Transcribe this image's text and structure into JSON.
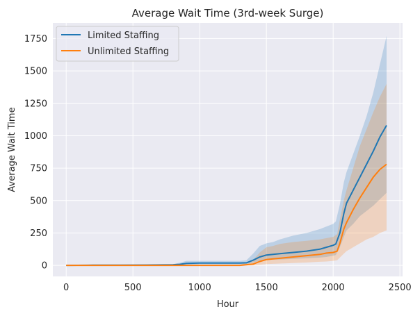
{
  "chart_data": {
    "type": "line",
    "title": "Average Wait Time (3rd-week Surge)",
    "xlabel": "Hour",
    "ylabel": "Average Wait Time",
    "xlim": [
      -100,
      2520
    ],
    "ylim": [
      -85,
      1870
    ],
    "xticks": [
      0,
      500,
      1000,
      1500,
      2000,
      2500
    ],
    "yticks": [
      0,
      250,
      500,
      750,
      1000,
      1250,
      1500,
      1750
    ],
    "grid": true,
    "legend": "top-left",
    "series": [
      {
        "name": "Limited Staffing",
        "color": "#1f77b4",
        "x": [
          0,
          200,
          400,
          600,
          800,
          850,
          900,
          1000,
          1100,
          1200,
          1300,
          1350,
          1400,
          1450,
          1500,
          1550,
          1600,
          1700,
          1800,
          1900,
          1950,
          2000,
          2020,
          2050,
          2080,
          2100,
          2150,
          2200,
          2250,
          2300,
          2350,
          2400
        ],
        "values": [
          0,
          2,
          2,
          3,
          5,
          8,
          15,
          18,
          18,
          18,
          18,
          20,
          40,
          65,
          80,
          85,
          90,
          100,
          110,
          125,
          140,
          155,
          165,
          250,
          400,
          480,
          580,
          680,
          780,
          880,
          990,
          1080
        ],
        "lower": [
          0,
          0,
          0,
          0,
          0,
          2,
          5,
          8,
          8,
          8,
          8,
          10,
          20,
          35,
          45,
          45,
          45,
          50,
          55,
          60,
          65,
          75,
          80,
          140,
          220,
          270,
          320,
          380,
          420,
          460,
          510,
          560
        ],
        "upper": [
          0,
          5,
          5,
          6,
          10,
          20,
          35,
          35,
          35,
          35,
          35,
          40,
          90,
          150,
          170,
          180,
          200,
          230,
          250,
          280,
          300,
          320,
          340,
          470,
          640,
          720,
          860,
          1000,
          1150,
          1330,
          1550,
          1770
        ]
      },
      {
        "name": "Unlimited Staffing",
        "color": "#ff7f0e",
        "x": [
          0,
          200,
          400,
          600,
          800,
          900,
          1000,
          1100,
          1200,
          1300,
          1400,
          1450,
          1500,
          1550,
          1600,
          1700,
          1800,
          1900,
          1950,
          2000,
          2030,
          2050,
          2080,
          2100,
          2150,
          2200,
          2250,
          2300,
          2350,
          2400
        ],
        "values": [
          0,
          0,
          0,
          0,
          0,
          0,
          0,
          0,
          0,
          0,
          10,
          30,
          45,
          50,
          55,
          65,
          75,
          85,
          95,
          100,
          110,
          170,
          280,
          330,
          430,
          520,
          600,
          680,
          740,
          780
        ],
        "lower": [
          0,
          0,
          0,
          0,
          0,
          0,
          0,
          0,
          0,
          0,
          0,
          5,
          10,
          12,
          14,
          18,
          22,
          28,
          30,
          35,
          40,
          60,
          90,
          110,
          140,
          170,
          200,
          220,
          250,
          270
        ],
        "upper": [
          0,
          0,
          0,
          0,
          0,
          0,
          0,
          0,
          0,
          5,
          40,
          100,
          140,
          150,
          165,
          180,
          190,
          200,
          210,
          220,
          240,
          350,
          500,
          580,
          750,
          920,
          1050,
          1180,
          1300,
          1400
        ]
      }
    ]
  }
}
